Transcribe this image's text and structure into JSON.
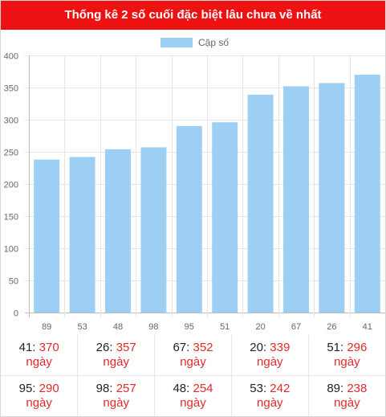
{
  "page": {
    "title": "Thống kê 2 số cuối đặc biệt lâu chưa về nhất"
  },
  "chart_data": {
    "type": "bar",
    "legend": "Cặp số",
    "legend_position": "top",
    "bar_color": "#9dcff5",
    "categories": [
      "89",
      "53",
      "48",
      "98",
      "95",
      "51",
      "20",
      "67",
      "26",
      "41"
    ],
    "series": [
      {
        "name": "Cặp số",
        "values": [
          238,
          242,
          254,
          257,
          290,
          296,
          339,
          352,
          357,
          370
        ]
      }
    ],
    "yticks": [
      "0",
      "50",
      "100",
      "150",
      "200",
      "250",
      "300",
      "350",
      "400"
    ],
    "ylim": [
      0,
      400
    ],
    "grid": true
  },
  "stats": {
    "unit": "ngày",
    "rows": [
      [
        {
          "num": "41",
          "days": "370"
        },
        {
          "num": "26",
          "days": "357"
        },
        {
          "num": "67",
          "days": "352"
        },
        {
          "num": "20",
          "days": "339"
        },
        {
          "num": "51",
          "days": "296"
        }
      ],
      [
        {
          "num": "95",
          "days": "290"
        },
        {
          "num": "98",
          "days": "257"
        },
        {
          "num": "48",
          "days": "254"
        },
        {
          "num": "53",
          "days": "242"
        },
        {
          "num": "89",
          "days": "238"
        }
      ]
    ]
  },
  "colors": {
    "title_bg": "#ee1111",
    "value_text": "#e02a2a"
  }
}
